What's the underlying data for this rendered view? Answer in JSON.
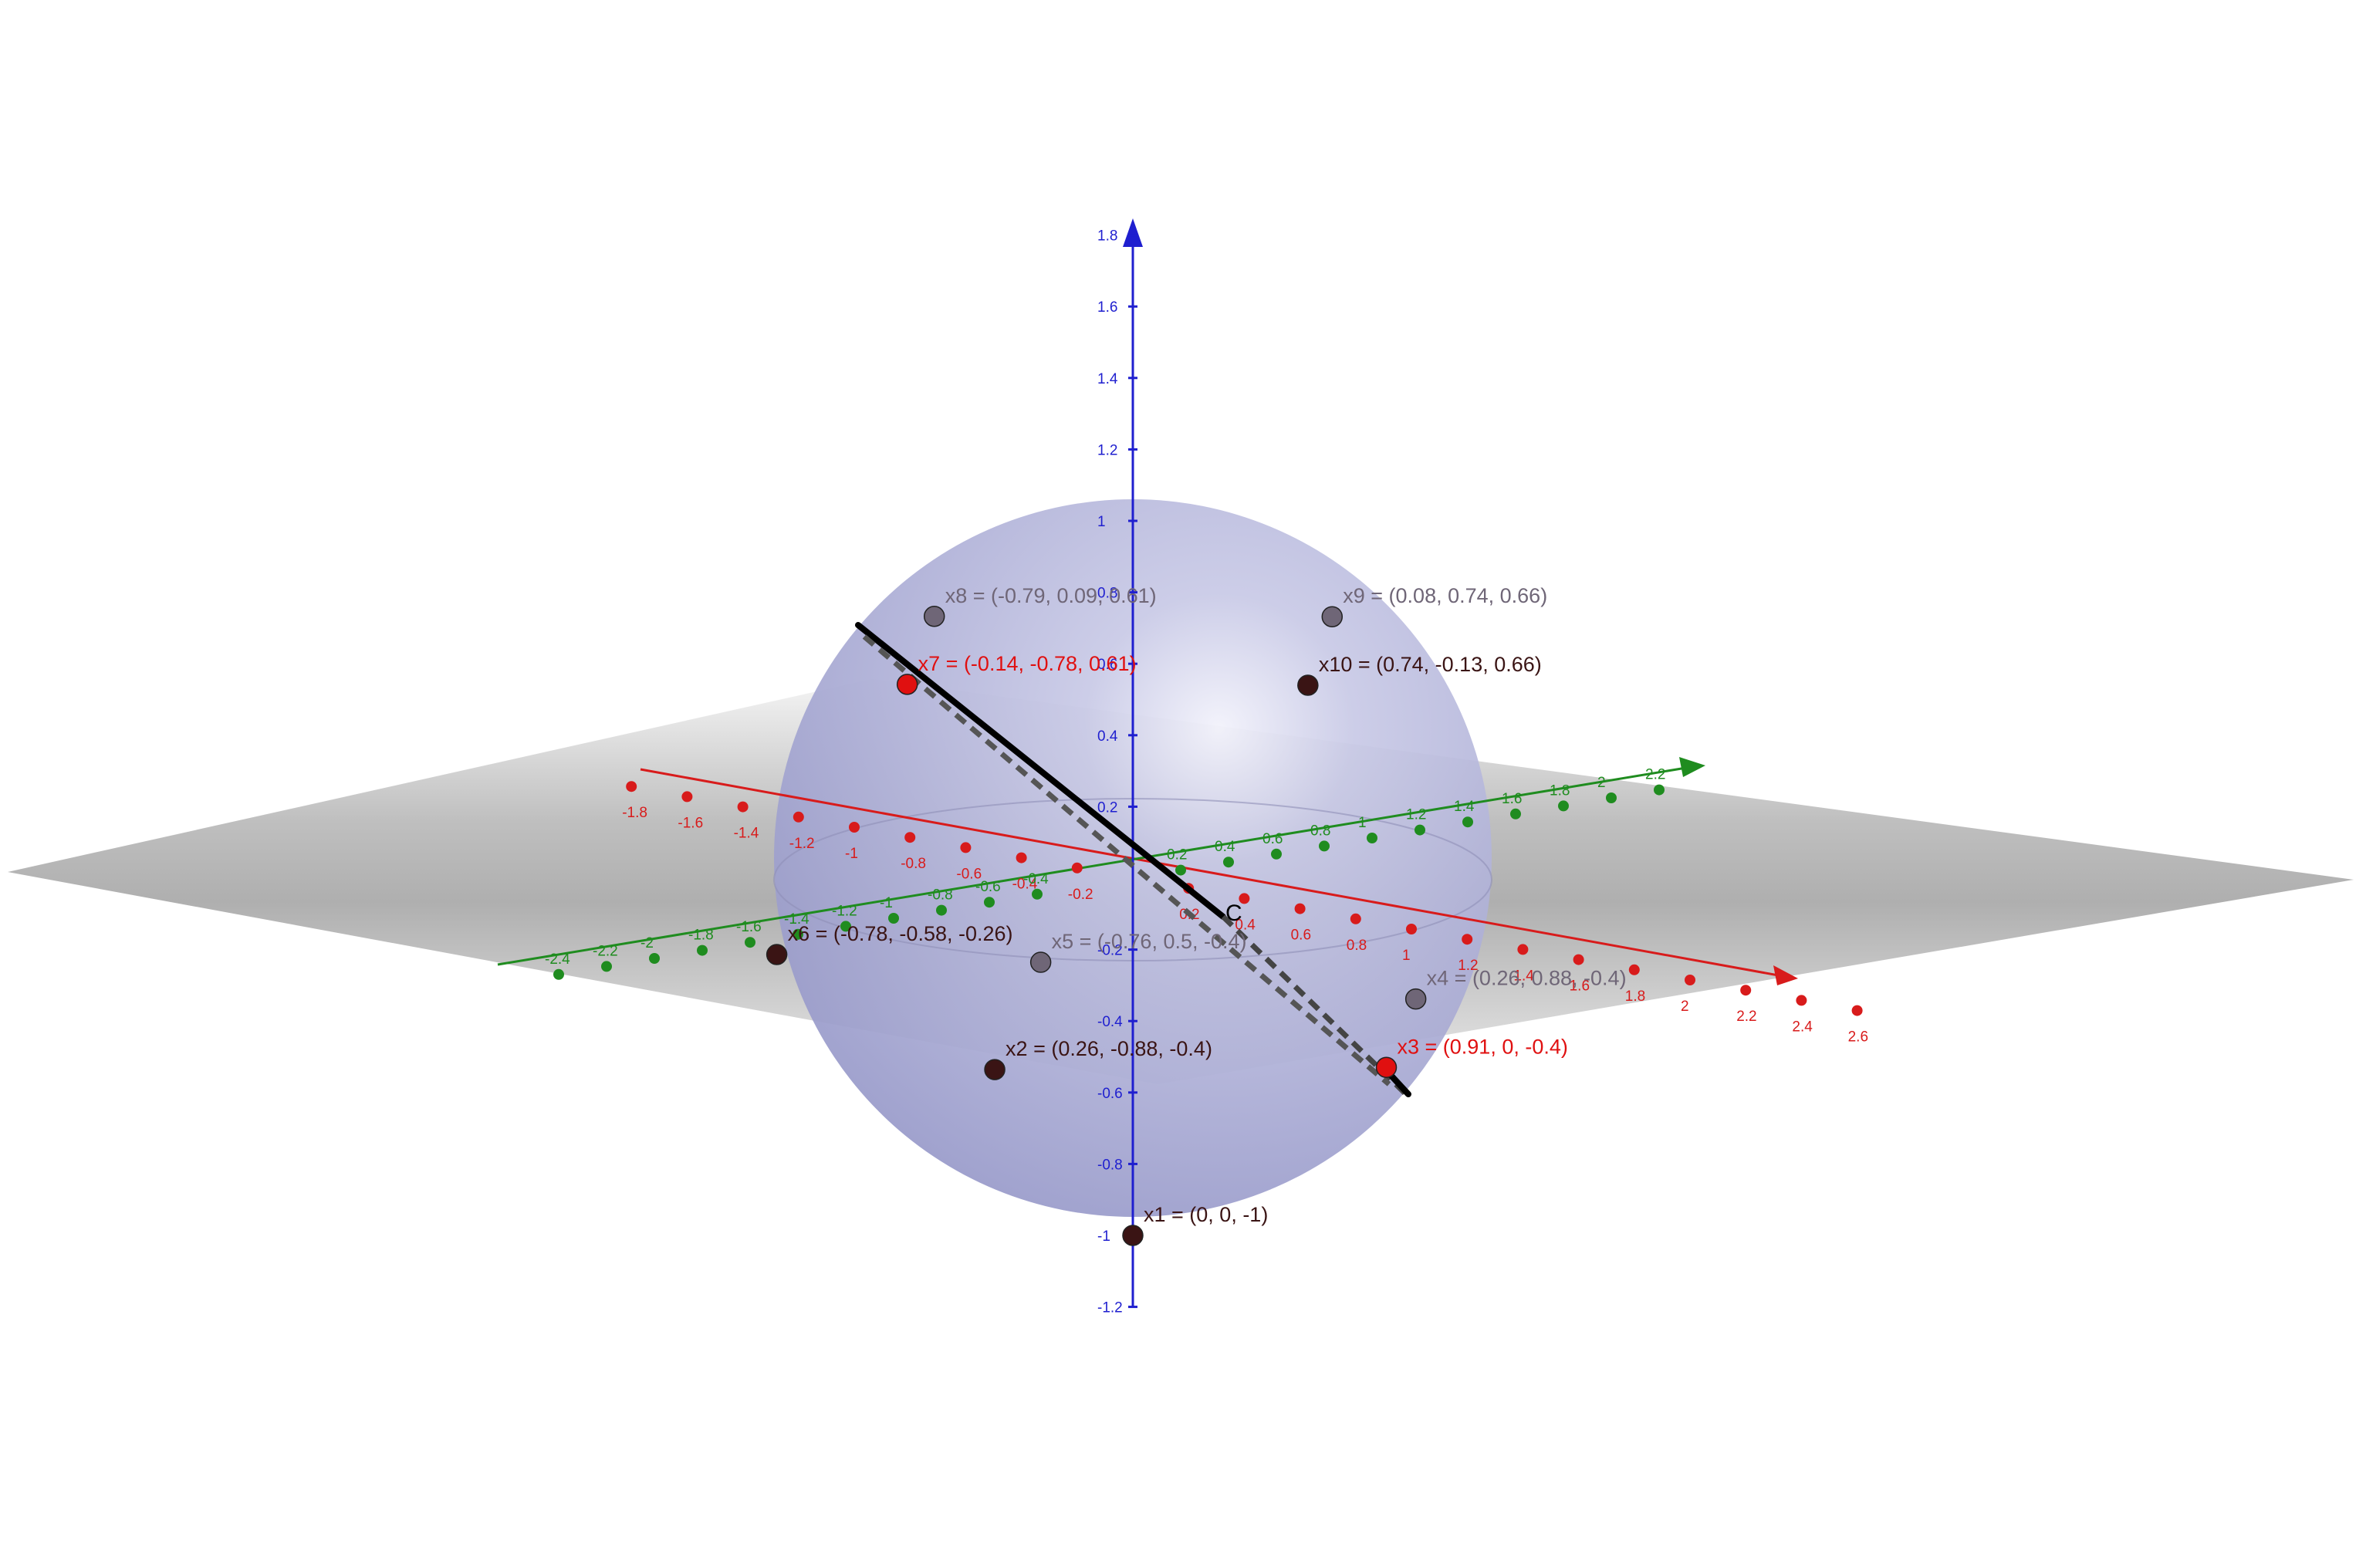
{
  "colors": {
    "x_axis": "#d81b1b",
    "y_axis": "#1f8c1f",
    "z_axis": "#1f1fcf",
    "sphere": "#a9abd6",
    "plane": "#9a9a9a",
    "point_dark": "#3a1414",
    "point_red": "#e01010",
    "point_gray": "#6f6677",
    "segment": "#000000"
  },
  "z_axis_ticks": [
    "1.8",
    "1.6",
    "1.4",
    "1.2",
    "1",
    "0.8",
    "0.6",
    "0.4",
    "0.2",
    "-0.2",
    "-0.4",
    "-0.6",
    "-0.8",
    "-1",
    "-1.2"
  ],
  "x_axis_ticks": [
    "-1.8",
    "-1.6",
    "-1.4",
    "-1.2",
    "-1",
    "-0.8",
    "-0.6",
    "-0.4",
    "-0.2",
    "0.2",
    "0.4",
    "0.6",
    "0.8",
    "1",
    "1.2",
    "1.4",
    "1.6",
    "1.8",
    "2",
    "2.2",
    "2.4",
    "2.6"
  ],
  "y_axis_ticks": [
    "-2.4",
    "-2.2",
    "-2",
    "-1.8",
    "-1.6",
    "-1.4",
    "-1.2",
    "-1",
    "-0.8",
    "-0.6",
    "-0.4",
    "0.2",
    "0.4",
    "0.6",
    "0.8",
    "1",
    "1.2",
    "1.4",
    "1.6",
    "1.8",
    "2",
    "2.2"
  ],
  "points": [
    {
      "label": "x1 = (0, 0, -1)",
      "color": "point_dark"
    },
    {
      "label": "x2 = (0.26, -0.88, -0.4)",
      "color": "point_dark"
    },
    {
      "label": "x3 = (0.91, 0, -0.4)",
      "color": "point_red"
    },
    {
      "label": "x4 = (0.26, 0.88, -0.4)",
      "color": "point_gray"
    },
    {
      "label": "x5 = (-0.76, 0.5, -0.4)",
      "color": "point_gray"
    },
    {
      "label": "x6 = (-0.78, -0.58, -0.26)",
      "color": "point_dark"
    },
    {
      "label": "x7 = (-0.14, -0.78, 0.61)",
      "color": "point_red"
    },
    {
      "label": "x8 = (-0.79, 0.09, 0.61)",
      "color": "point_gray"
    },
    {
      "label": "x9 = (0.08, 0.74, 0.66)",
      "color": "point_gray"
    },
    {
      "label": "x10 = (0.74, -0.13, 0.66)",
      "color": "point_dark"
    }
  ],
  "center_label": "C"
}
